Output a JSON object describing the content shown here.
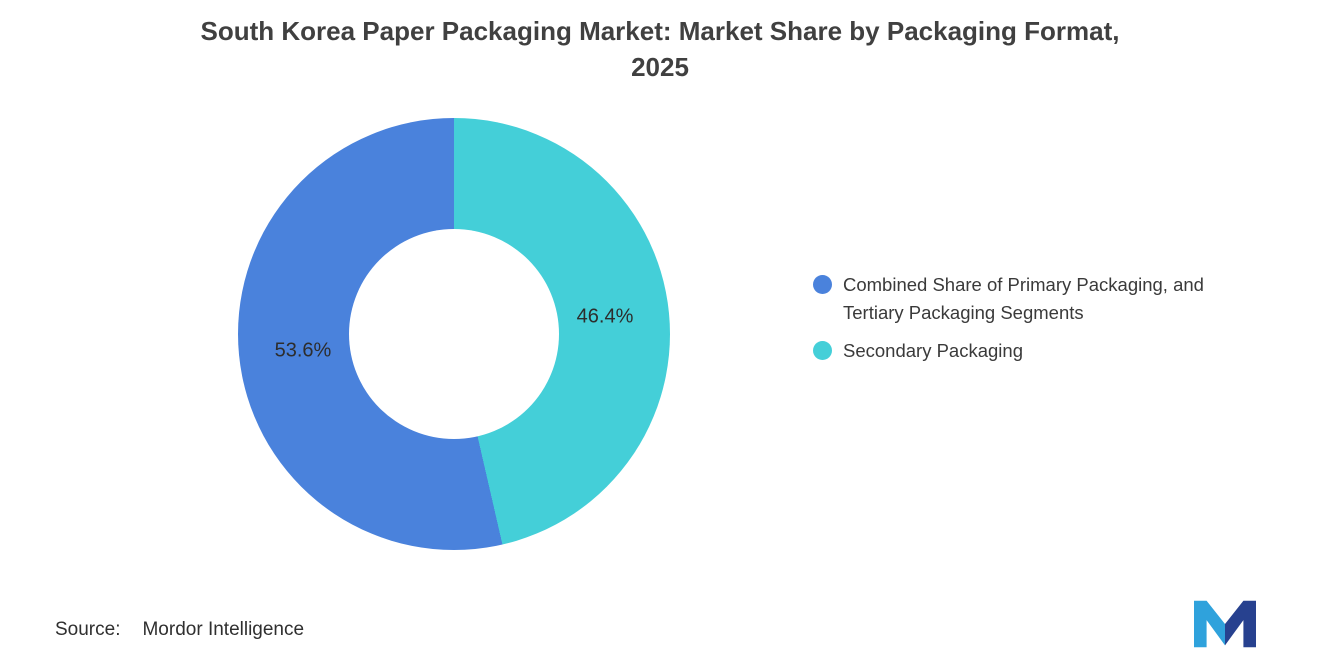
{
  "header": {
    "title_line1": "South Korea Paper Packaging Market: Market Share by Packaging Format,",
    "title_line2": "2025"
  },
  "chart_data": {
    "type": "pie",
    "subtype": "donut",
    "title": "South Korea Paper Packaging Market: Market Share by Packaging Format, 2025",
    "unit": "%",
    "segments": [
      {
        "label": "Combined Share of Primary Packaging, and Tertiary Packaging Segments",
        "value": 53.6,
        "data_label": "53.6%",
        "color": "#4A82DC"
      },
      {
        "label": "Secondary Packaging",
        "value": 46.4,
        "data_label": "46.4%",
        "color": "#44CFD8"
      }
    ],
    "start_angle_deg": 0,
    "first_segment_direction": "counterclockwise_from_top",
    "legend_position": "right",
    "hole_ratio": 0.49
  },
  "legend": {
    "items": [
      {
        "label": "Combined Share of Primary Packaging, and Tertiary Packaging Segments"
      },
      {
        "label": "Secondary Packaging"
      }
    ]
  },
  "source": {
    "label": "Source:",
    "value": "Mordor Intelligence"
  },
  "colors": {
    "title_text": "#404040",
    "body_text": "#3A3A3A",
    "logo_left": "#2FA2DC",
    "logo_right": "#27418F"
  }
}
